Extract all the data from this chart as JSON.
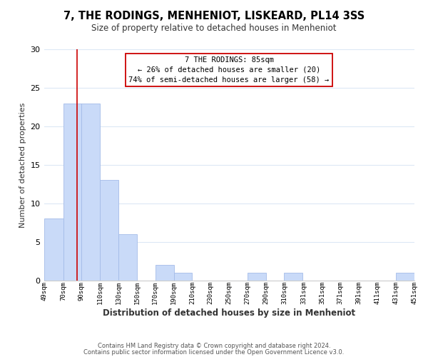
{
  "title": "7, THE RODINGS, MENHENIOT, LISKEARD, PL14 3SS",
  "subtitle": "Size of property relative to detached houses in Menheniot",
  "xlabel": "Distribution of detached houses by size in Menheniot",
  "ylabel": "Number of detached properties",
  "bar_left_edges": [
    49,
    70,
    90,
    110,
    130,
    150,
    170,
    190,
    210,
    230,
    250,
    270,
    290,
    310,
    331,
    351,
    371,
    391,
    411,
    431
  ],
  "bar_widths": [
    21,
    20,
    20,
    20,
    20,
    20,
    20,
    20,
    20,
    20,
    20,
    20,
    20,
    20,
    20,
    20,
    20,
    20,
    20,
    20
  ],
  "bar_heights": [
    8,
    23,
    23,
    13,
    6,
    0,
    2,
    1,
    0,
    0,
    0,
    1,
    0,
    1,
    0,
    0,
    0,
    0,
    0,
    1
  ],
  "bar_color": "#c9daf8",
  "bar_edgecolor": "#a4bce8",
  "red_line_x": 85,
  "ylim": [
    0,
    30
  ],
  "yticks": [
    0,
    5,
    10,
    15,
    20,
    25,
    30
  ],
  "tick_labels": [
    "49sqm",
    "70sqm",
    "90sqm",
    "110sqm",
    "130sqm",
    "150sqm",
    "170sqm",
    "190sqm",
    "210sqm",
    "230sqm",
    "250sqm",
    "270sqm",
    "290sqm",
    "310sqm",
    "331sqm",
    "351sqm",
    "371sqm",
    "391sqm",
    "411sqm",
    "431sqm",
    "451sqm"
  ],
  "tick_positions": [
    49,
    70,
    90,
    110,
    130,
    150,
    170,
    190,
    210,
    230,
    250,
    270,
    290,
    310,
    331,
    351,
    371,
    391,
    411,
    431,
    451
  ],
  "annotation_title": "7 THE RODINGS: 85sqm",
  "annotation_line1": "← 26% of detached houses are smaller (20)",
  "annotation_line2": "74% of semi-detached houses are larger (58) →",
  "footer1": "Contains HM Land Registry data © Crown copyright and database right 2024.",
  "footer2": "Contains public sector information licensed under the Open Government Licence v3.0.",
  "background_color": "#ffffff",
  "grid_color": "#dce8f5"
}
